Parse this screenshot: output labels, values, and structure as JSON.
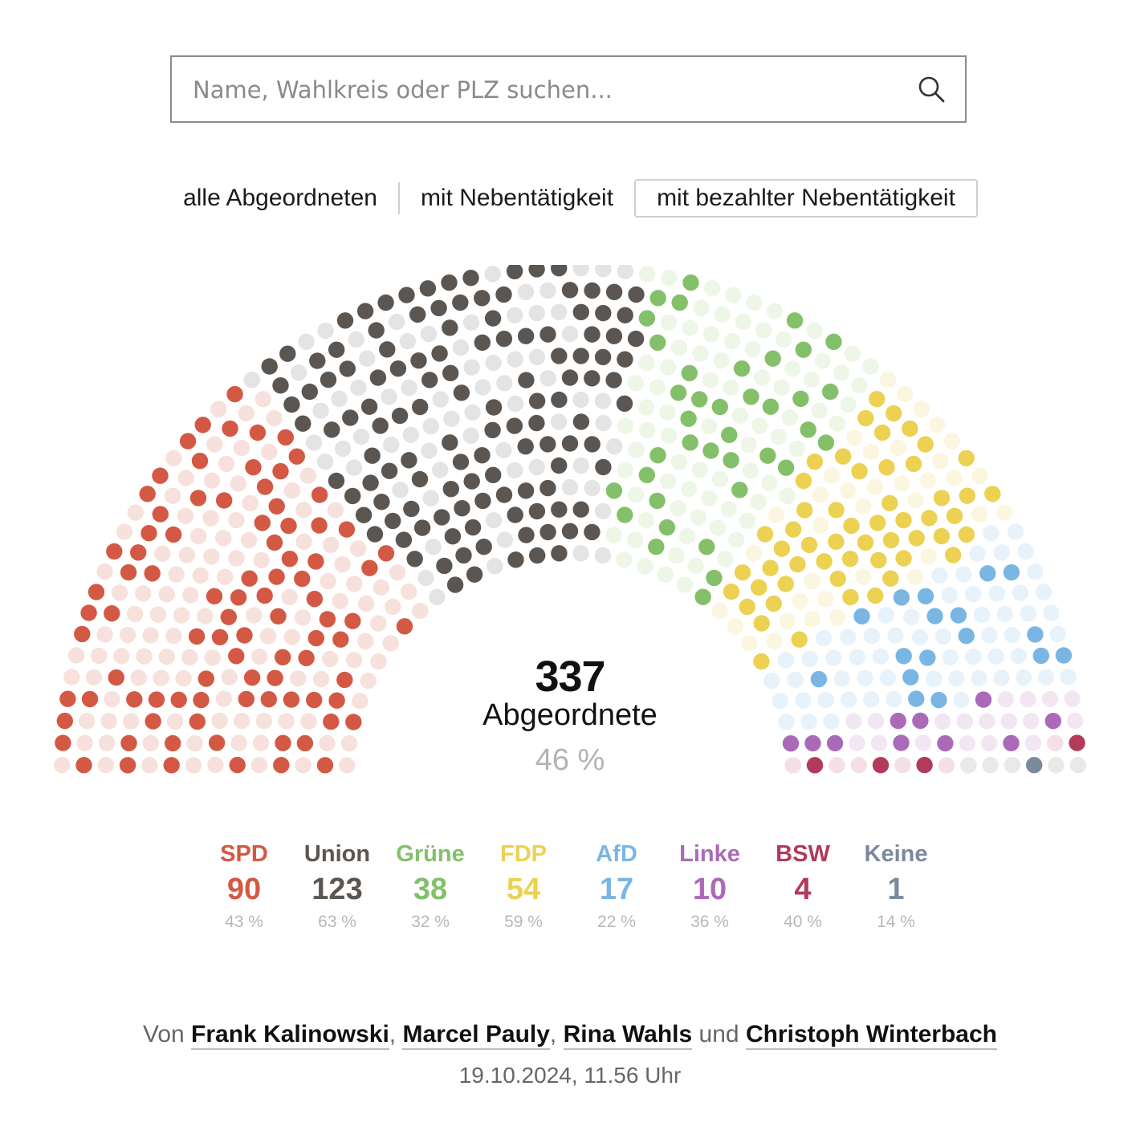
{
  "search": {
    "placeholder": "Name, Wahlkreis oder PLZ suchen..."
  },
  "filters": [
    {
      "label": "alle Abgeordneten",
      "active": false
    },
    {
      "label": "mit Nebentätigkeit",
      "active": false
    },
    {
      "label": "mit bezahlter Nebentätigkeit",
      "active": true
    }
  ],
  "center": {
    "total": "337",
    "label": "Abgeordnete",
    "percent": "46 %"
  },
  "chart_data": {
    "type": "parliament",
    "highlighted_total": 337,
    "highlighted_share_percent": 46,
    "series": [
      {
        "name": "SPD",
        "highlighted": 90,
        "percent": 43,
        "color": "#d35944",
        "light": "#f6e1dd"
      },
      {
        "name": "Union",
        "highlighted": 123,
        "percent": 63,
        "color": "#5b5651",
        "light": "#e4e4e4"
      },
      {
        "name": "Grüne",
        "highlighted": 38,
        "percent": 32,
        "color": "#84c069",
        "light": "#eef6e8"
      },
      {
        "name": "FDP",
        "highlighted": 54,
        "percent": 59,
        "color": "#ecd152",
        "light": "#fbf6df"
      },
      {
        "name": "AfD",
        "highlighted": 17,
        "percent": 22,
        "color": "#79b6e3",
        "light": "#e8f2fb"
      },
      {
        "name": "Linke",
        "highlighted": 10,
        "percent": 36,
        "color": "#ab6ab8",
        "light": "#f3e6f3"
      },
      {
        "name": "BSW",
        "highlighted": 4,
        "percent": 40,
        "color": "#b23a5b",
        "light": "#f4e0e5"
      },
      {
        "name": "Keine",
        "highlighted": 1,
        "percent": 14,
        "color": "#7a8a9b",
        "light": "#e9e9e9"
      }
    ]
  },
  "legend": [
    {
      "name": "SPD",
      "count": "90",
      "percent": "43 %"
    },
    {
      "name": "Union",
      "count": "123",
      "percent": "63 %"
    },
    {
      "name": "Grüne",
      "count": "38",
      "percent": "32 %"
    },
    {
      "name": "FDP",
      "count": "54",
      "percent": "59 %"
    },
    {
      "name": "AfD",
      "count": "17",
      "percent": "22 %"
    },
    {
      "name": "Linke",
      "count": "10",
      "percent": "36 %"
    },
    {
      "name": "BSW",
      "count": "4",
      "percent": "40 %"
    },
    {
      "name": "Keine",
      "count": "1",
      "percent": "14 %"
    }
  ],
  "byline": {
    "prefix": "Von",
    "authors": [
      "Frank Kalinowski",
      "Marcel Pauly",
      "Rina Wahls",
      "Christoph Winterbach"
    ],
    "sep": ",",
    "and": "und",
    "date": "19.10.2024, 11.56 Uhr"
  }
}
